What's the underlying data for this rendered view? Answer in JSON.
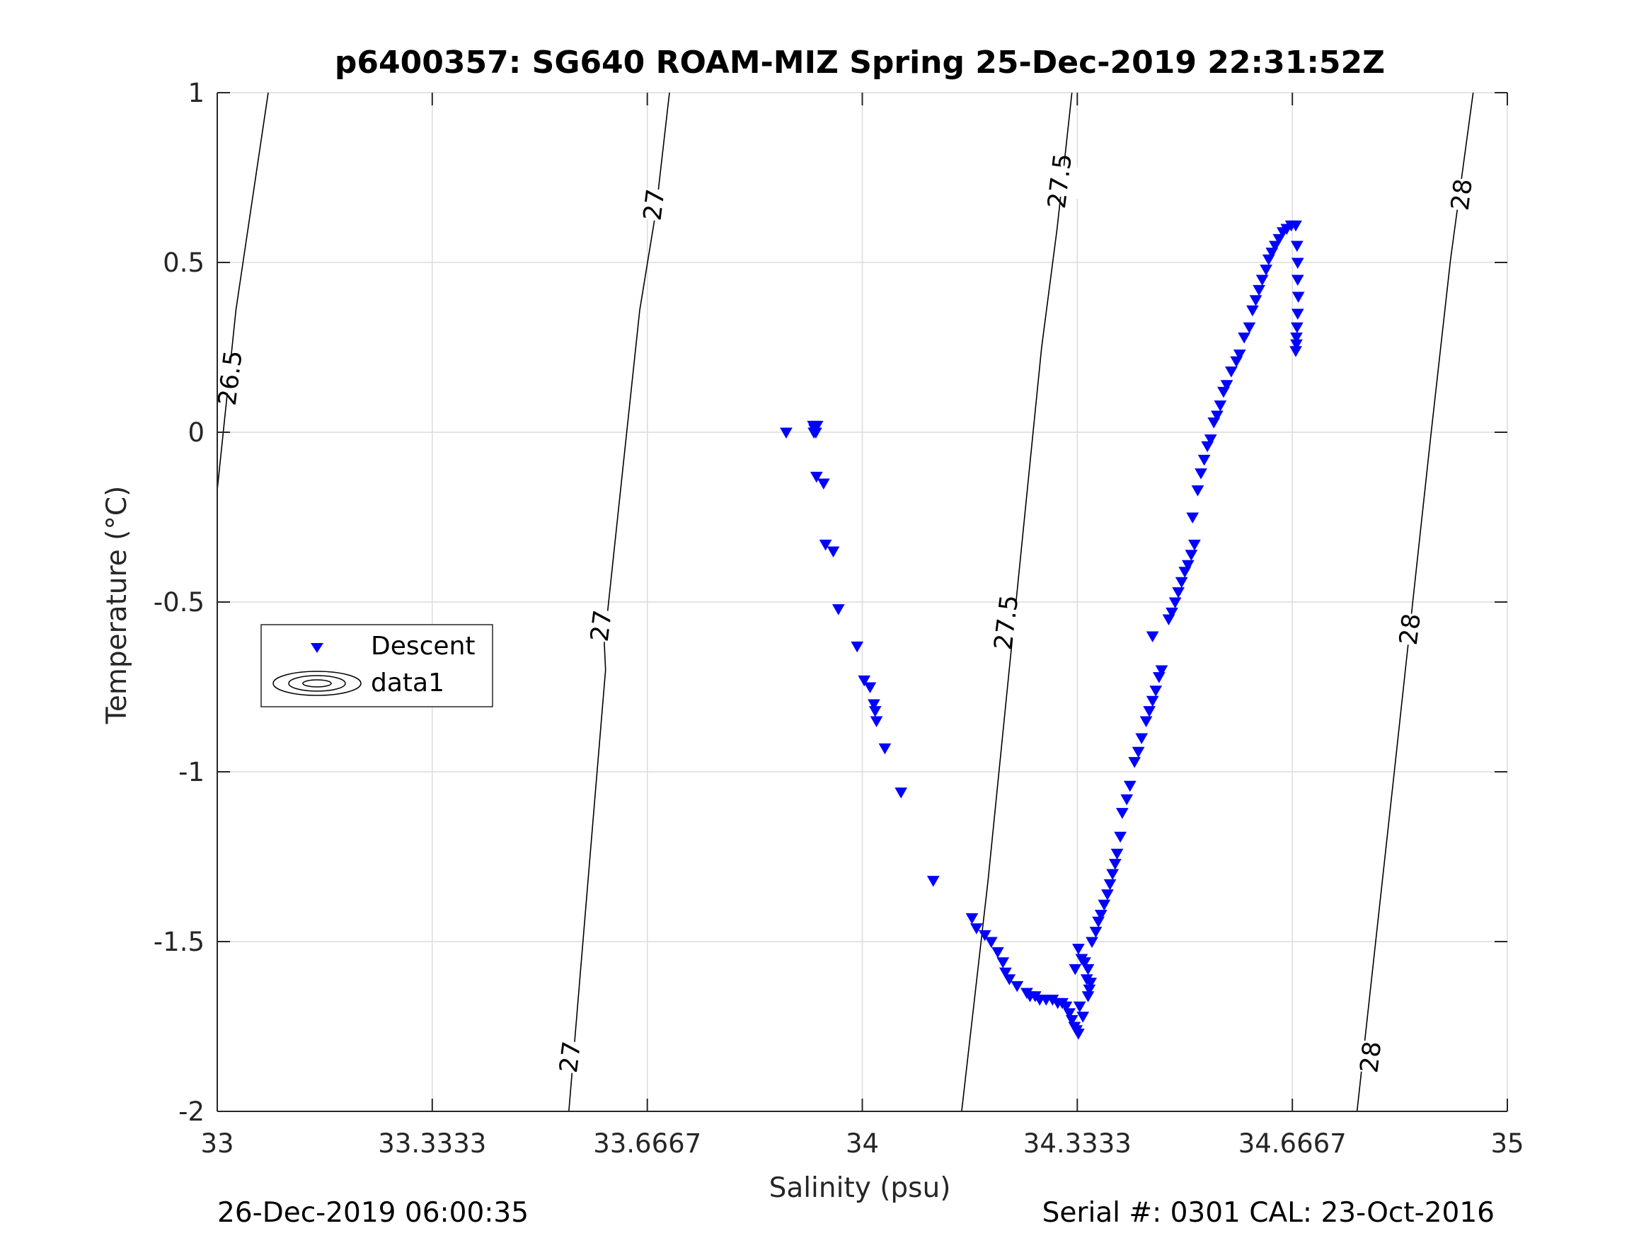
{
  "title": "p6400357: SG640 ROAM-MIZ Spring 25-Dec-2019 22:31:52Z",
  "footer_left": "26-Dec-2019 06:00:35",
  "footer_right": "Serial #: 0301  CAL: 23-Oct-2016",
  "colors": {
    "descent": "#0000ff",
    "contour": "#000000",
    "grid": "#dcdcdc",
    "axis": "#262626"
  },
  "chart_data": {
    "type": "scatter",
    "title": "p6400357: SG640 ROAM-MIZ Spring 25-Dec-2019 22:31:52Z",
    "xlabel": "Salinity (psu)",
    "ylabel": "Temperature (°C)",
    "xlim": [
      33,
      35
    ],
    "ylim": [
      -2,
      1
    ],
    "xticks": [
      33,
      33.3333,
      33.6667,
      34,
      34.3333,
      34.6667,
      35
    ],
    "xtick_labels": [
      "33",
      "33.3333",
      "33.6667",
      "34",
      "34.3333",
      "34.6667",
      "35"
    ],
    "yticks": [
      -2,
      -1.5,
      -1,
      -0.5,
      0,
      0.5,
      1
    ],
    "ytick_labels": [
      "-2",
      "-1.5",
      "-1",
      "-0.5",
      "0",
      "0.5",
      "1"
    ],
    "grid": true,
    "legend": {
      "placement": "left",
      "entries": [
        "Descent",
        "data1"
      ]
    },
    "density_contours": [
      {
        "label": "26.5",
        "points": [
          [
            33.0,
            -0.17
          ],
          [
            33.029,
            0.36
          ],
          [
            33.079,
            1.0
          ]
        ]
      },
      {
        "label": "27",
        "points": [
          [
            33.545,
            -2.0
          ],
          [
            33.602,
            -0.7
          ],
          [
            33.6,
            -0.62
          ],
          [
            33.655,
            0.36
          ],
          [
            33.68,
            0.65
          ],
          [
            33.701,
            1.0
          ]
        ]
      },
      {
        "label": "27.5",
        "points": [
          [
            34.154,
            -2.0
          ],
          [
            34.195,
            -1.32
          ],
          [
            34.278,
            0.25
          ],
          [
            34.302,
            0.6
          ],
          [
            34.325,
            1.0
          ]
        ]
      },
      {
        "label": "28",
        "points": [
          [
            34.767,
            -2.0
          ],
          [
            34.823,
            -1.03
          ],
          [
            34.882,
            0.0
          ],
          [
            34.912,
            0.51
          ],
          [
            34.947,
            1.0
          ]
        ]
      }
    ],
    "contour_labels": [
      {
        "text": "26.5",
        "x": 33.02,
        "y": 0.16
      },
      {
        "text": "27",
        "x": 33.677,
        "y": 0.67
      },
      {
        "text": "27",
        "x": 33.595,
        "y": -0.57
      },
      {
        "text": "27",
        "x": 33.547,
        "y": -1.84
      },
      {
        "text": "27.5",
        "x": 34.306,
        "y": 0.74
      },
      {
        "text": "27.5",
        "x": 34.223,
        "y": -0.56
      },
      {
        "text": "28",
        "x": 34.929,
        "y": 0.7
      },
      {
        "text": "28",
        "x": 34.849,
        "y": -0.58
      },
      {
        "text": "28",
        "x": 34.788,
        "y": -1.84
      }
    ],
    "series": [
      {
        "name": "Descent",
        "marker": "triangle-down",
        "points": [
          [
            33.882,
            0.0
          ],
          [
            33.924,
            0.02
          ],
          [
            33.926,
            0.01
          ],
          [
            33.928,
            0.0
          ],
          [
            33.93,
            0.02
          ],
          [
            33.925,
            0.0
          ],
          [
            33.929,
            -0.13
          ],
          [
            33.94,
            -0.15
          ],
          [
            33.943,
            -0.33
          ],
          [
            33.955,
            -0.35
          ],
          [
            33.963,
            -0.52
          ],
          [
            33.992,
            -0.63
          ],
          [
            34.003,
            -0.73
          ],
          [
            34.012,
            -0.75
          ],
          [
            34.018,
            -0.8
          ],
          [
            34.02,
            -0.82
          ],
          [
            34.022,
            -0.85
          ],
          [
            34.035,
            -0.93
          ],
          [
            34.06,
            -1.06
          ],
          [
            34.11,
            -1.32
          ],
          [
            34.17,
            -1.43
          ],
          [
            34.177,
            -1.46
          ],
          [
            34.19,
            -1.48
          ],
          [
            34.2,
            -1.5
          ],
          [
            34.21,
            -1.53
          ],
          [
            34.218,
            -1.56
          ],
          [
            34.222,
            -1.59
          ],
          [
            34.228,
            -1.61
          ],
          [
            34.24,
            -1.63
          ],
          [
            34.255,
            -1.65
          ],
          [
            34.26,
            -1.66
          ],
          [
            34.268,
            -1.66
          ],
          [
            34.275,
            -1.67
          ],
          [
            34.285,
            -1.67
          ],
          [
            34.295,
            -1.67
          ],
          [
            34.303,
            -1.68
          ],
          [
            34.31,
            -1.68
          ],
          [
            34.316,
            -1.69
          ],
          [
            34.321,
            -1.71
          ],
          [
            34.325,
            -1.73
          ],
          [
            34.329,
            -1.75
          ],
          [
            34.332,
            -1.76
          ],
          [
            34.335,
            -1.77
          ],
          [
            34.33,
            -1.58
          ],
          [
            34.335,
            -1.52
          ],
          [
            34.34,
            -1.55
          ],
          [
            34.345,
            -1.56
          ],
          [
            34.35,
            -1.58
          ],
          [
            34.337,
            -1.69
          ],
          [
            34.342,
            -1.72
          ],
          [
            34.348,
            -1.61
          ],
          [
            34.352,
            -1.64
          ],
          [
            34.35,
            -1.66
          ],
          [
            34.354,
            -1.62
          ],
          [
            34.356,
            -1.5
          ],
          [
            34.362,
            -1.47
          ],
          [
            34.366,
            -1.44
          ],
          [
            34.37,
            -1.42
          ],
          [
            34.375,
            -1.39
          ],
          [
            34.38,
            -1.36
          ],
          [
            34.384,
            -1.33
          ],
          [
            34.388,
            -1.3
          ],
          [
            34.392,
            -1.27
          ],
          [
            34.395,
            -1.24
          ],
          [
            34.4,
            -1.19
          ],
          [
            34.403,
            -1.12
          ],
          [
            34.41,
            -1.08
          ],
          [
            34.415,
            -1.04
          ],
          [
            34.422,
            -0.97
          ],
          [
            34.428,
            -0.94
          ],
          [
            34.433,
            -0.9
          ],
          [
            34.44,
            -0.85
          ],
          [
            34.445,
            -0.82
          ],
          [
            34.45,
            -0.79
          ],
          [
            34.455,
            -0.76
          ],
          [
            34.46,
            -0.72
          ],
          [
            34.464,
            -0.7
          ],
          [
            34.45,
            -0.6
          ],
          [
            34.475,
            -0.55
          ],
          [
            34.48,
            -0.53
          ],
          [
            34.485,
            -0.5
          ],
          [
            34.49,
            -0.47
          ],
          [
            34.495,
            -0.44
          ],
          [
            34.5,
            -0.41
          ],
          [
            34.505,
            -0.39
          ],
          [
            34.51,
            -0.36
          ],
          [
            34.515,
            -0.33
          ],
          [
            34.512,
            -0.25
          ],
          [
            34.52,
            -0.17
          ],
          [
            34.525,
            -0.12
          ],
          [
            34.53,
            -0.08
          ],
          [
            34.535,
            -0.04
          ],
          [
            34.54,
            -0.02
          ],
          [
            34.545,
            0.03
          ],
          [
            34.55,
            0.05
          ],
          [
            34.555,
            0.08
          ],
          [
            34.56,
            0.12
          ],
          [
            34.565,
            0.14
          ],
          [
            34.572,
            0.18
          ],
          [
            34.58,
            0.21
          ],
          [
            34.585,
            0.23
          ],
          [
            34.592,
            0.28
          ],
          [
            34.6,
            0.31
          ],
          [
            34.605,
            0.36
          ],
          [
            34.61,
            0.39
          ],
          [
            34.615,
            0.42
          ],
          [
            34.62,
            0.45
          ],
          [
            34.626,
            0.48
          ],
          [
            34.63,
            0.51
          ],
          [
            34.635,
            0.53
          ],
          [
            34.64,
            0.55
          ],
          [
            34.646,
            0.57
          ],
          [
            34.652,
            0.59
          ],
          [
            34.658,
            0.6
          ],
          [
            34.665,
            0.61
          ],
          [
            34.672,
            0.61
          ],
          [
            34.674,
            0.55
          ],
          [
            34.675,
            0.5
          ],
          [
            34.675,
            0.45
          ],
          [
            34.676,
            0.4
          ],
          [
            34.675,
            0.35
          ],
          [
            34.674,
            0.31
          ],
          [
            34.673,
            0.28
          ],
          [
            34.673,
            0.26
          ],
          [
            34.672,
            0.24
          ]
        ]
      },
      {
        "name": "data1",
        "points": []
      }
    ]
  }
}
